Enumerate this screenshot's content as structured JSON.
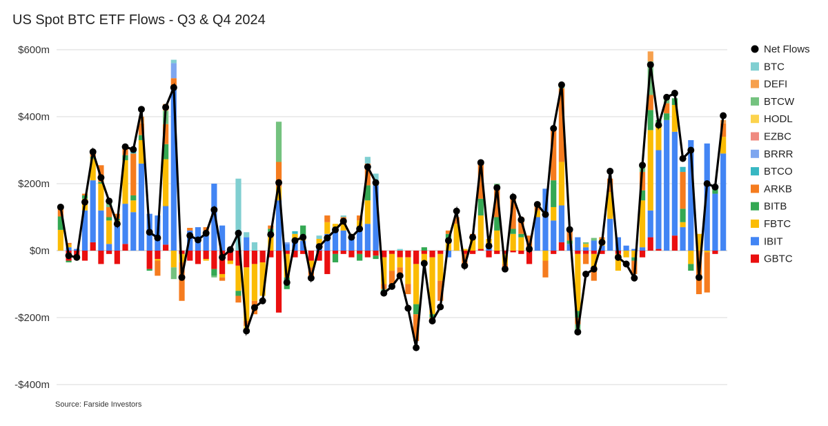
{
  "chart_data": {
    "type": "bar",
    "stacked": true,
    "title": "US Spot BTC ETF Flows - Q3 & Q4 2024",
    "source": "Source: Farside Investors",
    "ylim": [
      -400,
      600
    ],
    "yticks": [
      600,
      400,
      200,
      0,
      -200,
      -400
    ],
    "ytick_labels": [
      "$600m",
      "$400m",
      "$200m",
      "$0m",
      "-$200m",
      "-$400m"
    ],
    "grid": true,
    "legend": "right",
    "legend_order": [
      "Net Flows",
      "BTC",
      "DEFI",
      "BTCW",
      "HODL",
      "EZBC",
      "BRRR",
      "BTCO",
      "ARKB",
      "BITB",
      "FBTC",
      "IBIT",
      "GBTC"
    ],
    "stack_order": [
      "GBTC",
      "IBIT",
      "FBTC",
      "BITB",
      "ARKB",
      "BTCO",
      "BRRR",
      "EZBC",
      "HODL",
      "BTCW",
      "DEFI",
      "BTC"
    ],
    "colors": {
      "BTC": "#80cfd1",
      "DEFI": "#f6a04d",
      "BTCW": "#74c27f",
      "HODL": "#fcd34d",
      "EZBC": "#ef8a80",
      "BRRR": "#7ea6ef",
      "BTCO": "#37b7c2",
      "ARKB": "#f57c1f",
      "BITB": "#34a853",
      "FBTC": "#fbbc04",
      "IBIT": "#4285f4",
      "GBTC": "#ea0f0f",
      "Net Flows": "#000000"
    },
    "days": [
      {
        "IBIT": 0,
        "FBTC": 62,
        "BITB": 40,
        "ARKB": 28
      },
      {
        "GBTC": -30,
        "IBIT": 10,
        "FBTC": 8,
        "BITB": -5,
        "ARKB": 5
      },
      {
        "GBTC": -25,
        "IBIT": 5,
        "ARKB": -3
      },
      {
        "GBTC": -30,
        "IBIT": 120,
        "FBTC": 35,
        "BITB": 10,
        "ARKB": 5
      },
      {
        "GBTC": 25,
        "IBIT": 185,
        "FBTC": 65,
        "ARKB": 20,
        "BITB": 5
      },
      {
        "GBTC": -40,
        "IBIT": 120,
        "FBTC": 80,
        "ARKB": 50,
        "BITB": 5
      },
      {
        "GBTC": -10,
        "IBIT": 20,
        "FBTC": 70,
        "ARKB": 30,
        "BITB": 10,
        "BTCW": 15
      },
      {
        "GBTC": -40,
        "IBIT": 80,
        "FBTC": 10,
        "ARKB": 15,
        "BITB": 5
      },
      {
        "GBTC": 20,
        "IBIT": 120,
        "FBTC": 130,
        "ARKB": 25,
        "BITB": 15
      },
      {
        "IBIT": 115,
        "FBTC": 35,
        "BITB": 15,
        "ARKB": 125,
        "BTCO": 10
      },
      {
        "IBIT": 260,
        "FBTC": 70,
        "BITB": 15,
        "ARKB": 35,
        "DEFI": 20
      },
      {
        "GBTC": -55,
        "IBIT": 110,
        "BITB": -5
      },
      {
        "GBTC": -25,
        "IBIT": 105,
        "ARKB": -45,
        "FBTC": -5
      },
      {
        "GBTC": 18,
        "IBIT": 115,
        "FBTC": 140,
        "BITB": 45,
        "ARKB": 60,
        "BTCW": 40,
        "DEFI": 20
      },
      {
        "IBIT": 480,
        "BRRR": 45,
        "ARKB": 35,
        "BTC": 10,
        "FBTC": -50,
        "BTCW": -35
      },
      {
        "GBTC": -10,
        "FBTC": -25,
        "ARKB": -115
      },
      {
        "GBTC": -30,
        "IBIT": 60,
        "ARKB": 8
      },
      {
        "GBTC": -40,
        "IBIT": 70
      },
      {
        "GBTC": -25,
        "IBIT": 60,
        "ARKB": 10,
        "FBTC": -5
      },
      {
        "GBTC": -55,
        "IBIT": 200,
        "BITB": -20,
        "BTCW": -5
      },
      {
        "GBTC": -70,
        "IBIT": 75,
        "FBTC": -10,
        "ARKB": -10
      },
      {
        "GBTC": -30,
        "FBTC": -10,
        "ARKB": 10
      },
      {
        "GBTC": -45,
        "FBTC": -75,
        "BITB": -15,
        "ARKB": -20,
        "BTC": 215
      },
      {
        "GBTC": -50,
        "IBIT": 40,
        "FBTC": -160,
        "ARKB": -15,
        "HODL": -20,
        "BTC": 15
      },
      {
        "GBTC": -40,
        "FBTC": -110,
        "ARKB": -40,
        "BTC": 25
      },
      {
        "GBTC": -35,
        "FBTC": -100
      },
      {
        "GBTC": -20,
        "FBTC": 50,
        "BITB": 15,
        "ARKB": 10
      },
      {
        "GBTC": -185,
        "IBIT": 150,
        "FBTC": 40,
        "ARKB": 75,
        "BTCW": 120
      },
      {
        "GBTC": -10,
        "IBIT": 20,
        "FBTC": -70,
        "BITB": -35,
        "BRRR": 5
      },
      {
        "GBTC": -20,
        "IBIT": 30,
        "FBTC": 20,
        "BTCO": 8
      },
      {
        "GBTC": -10,
        "IBIT": 30,
        "FBTC": 15,
        "BITB": 30
      },
      {
        "GBTC": -30,
        "FBTC": -20,
        "ARKB": -25
      },
      {
        "GBTC": -30,
        "IBIT": 20,
        "FBTC": 15,
        "BTC": 10
      },
      {
        "GBTC": -70,
        "IBIT": 50,
        "FBTC": 35,
        "ARKB": 20
      },
      {
        "GBTC": -10,
        "IBIT": 70,
        "FBTC": 10,
        "BITB": -25
      },
      {
        "GBTC": -10,
        "IBIT": 60,
        "FBTC": 30,
        "ARKB": 10,
        "BTC": 5
      },
      {
        "GBTC": -20,
        "IBIT": 40,
        "FBTC": 10
      },
      {
        "GBTC": -10,
        "IBIT": 60,
        "FBTC": 30,
        "BITB": -20,
        "ARKB": 15
      },
      {
        "GBTC": -20,
        "IBIT": 80,
        "FBTC": 70,
        "BITB": 45,
        "ARKB": 65,
        "BTC": 20
      },
      {
        "GBTC": -15,
        "IBIT": 195,
        "FBTC": 10,
        "BITB": -10,
        "BTC": 25
      },
      {
        "GBTC": -20,
        "FBTC": -80,
        "ARKB": -15,
        "BTCW": -10
      },
      {
        "GBTC": -10,
        "FBTC": -50,
        "ARKB": -40
      },
      {
        "GBTC": -20,
        "FBTC": -30,
        "ARKB": -20,
        "BTC": 5
      },
      {
        "GBTC": -20,
        "FBTC": -80,
        "ARKB": -30
      },
      {
        "GBTC": -40,
        "FBTC": -120,
        "BITB": -30,
        "ARKB": -80
      },
      {
        "GBTC": -10,
        "FBTC": -30,
        "BITB": 10
      },
      {
        "GBTC": -20,
        "FBTC": -170,
        "BITB": -10,
        "ARKB": -15
      },
      {
        "GBTC": -10,
        "FBTC": -80,
        "ARKB": -60
      },
      {
        "FBTC": 30,
        "ARKB": 10,
        "BITB": 20,
        "IBIT": -20
      },
      {
        "IBIT": 0,
        "FBTC": 80,
        "ARKB": 20
      },
      {
        "GBTC": -10,
        "FBTC": 5,
        "ARKB": -40
      },
      {
        "GBTC": -10,
        "FBTC": 35,
        "ARKB": 15
      },
      {
        "GBTC": 5,
        "FBTC": 100,
        "BITB": 50,
        "ARKB": 110
      },
      {
        "GBTC": -20,
        "IBIT": 10,
        "FBTC": 25
      },
      {
        "GBTC": -10,
        "FBTC": 60,
        "BITB": 40,
        "ARKB": 90,
        "BTCW": 10
      },
      {
        "GBTC": -10,
        "FBTC": -30,
        "ARKB": -10
      },
      {
        "GBTC": -5,
        "FBTC": 50,
        "ARKB": 100,
        "BITB": 15
      },
      {
        "GBTC": -10,
        "FBTC": 40,
        "BITB": 10,
        "ARKB": 50
      },
      {
        "GBTC": -40,
        "IBIT": 5,
        "ARKB": 40
      },
      {
        "IBIT": 100,
        "FBTC": 20,
        "ARKB": 15
      },
      {
        "IBIT": 185,
        "FBTC": -30,
        "ARKB": -50
      },
      {
        "GBTC": -10,
        "IBIT": 90,
        "FBTC": 40,
        "BITB": 80,
        "ARKB": 150
      },
      {
        "GBTC": 25,
        "IBIT": 110,
        "FBTC": 130,
        "ARKB": 220,
        "BTCW": 10
      },
      {
        "IBIT": 20,
        "ARKB": 30,
        "BITB": 10
      },
      {
        "GBTC": -10,
        "IBIT": 40,
        "FBTC": -170,
        "BITB": -20,
        "ARKB": -20,
        "BTCW": -30
      },
      {
        "GBTC": -10,
        "FBTC": 10,
        "ARKB": -30,
        "IBIT": 10,
        "BTCW": 5
      },
      {
        "GBTC": -10,
        "IBIT": 30,
        "FBTC": -50,
        "ARKB": -30,
        "BTCW": 8
      },
      {
        "GBTC": -10,
        "FBTC": 20,
        "IBIT": 15,
        "ARKB": 5
      },
      {
        "IBIT": 95,
        "FBTC": 80,
        "ARKB": 40
      },
      {
        "GBTC": -10,
        "IBIT": 40,
        "FBTC": -50
      },
      {
        "IBIT": 15,
        "FBTC": -20
      },
      {
        "IBIT": 5,
        "FBTC": -20,
        "ARKB": -40,
        "BITB": -10
      },
      {
        "GBTC": -20,
        "IBIT": 10,
        "FBTC": 140,
        "ARKB": 55,
        "BITB": 30,
        "BTCW": 20
      },
      {
        "GBTC": 40,
        "IBIT": 80,
        "FBTC": 240,
        "ARKB": 45,
        "BITB": 60,
        "BTCW": 100,
        "DEFI": 30
      },
      {
        "GBTC": 5,
        "IBIT": 295,
        "FBTC": 80,
        "BITB": 10
      },
      {
        "IBIT": 390,
        "ARKB": 30,
        "BITB": 20,
        "BTCW": 20
      },
      {
        "GBTC": 45,
        "IBIT": 310,
        "FBTC": 80,
        "BITB": 20
      },
      {
        "IBIT": 70,
        "ARKB": 110,
        "BITB": 40,
        "FBTC": 15,
        "BTCO": 15
      },
      {
        "IBIT": 330,
        "FBTC": -40,
        "BITB": -20
      },
      {
        "IBIT": 0,
        "FBTC": 50,
        "ARKB": -130
      },
      {
        "IBIT": 320,
        "FBTC": -5,
        "ARKB": -120
      },
      {
        "GBTC": -10,
        "IBIT": 170,
        "BITB": 20
      },
      {
        "IBIT": 290,
        "FBTC": 50,
        "ARKB": 40,
        "DEFI": 10
      }
    ],
    "net_flows": [
      130,
      -15,
      -20,
      145,
      295,
      218,
      148,
      80,
      310,
      302,
      422,
      55,
      38,
      428,
      487,
      -80,
      45,
      32,
      52,
      122,
      -20,
      3,
      52,
      -240,
      -170,
      -150,
      48,
      203,
      -95,
      30,
      40,
      -82,
      12,
      38,
      62,
      88,
      40,
      65,
      250,
      203,
      -127,
      -107,
      -75,
      -172,
      -290,
      -38,
      -210,
      -168,
      30,
      118,
      -45,
      40,
      263,
      14,
      188,
      -55,
      160,
      92,
      5,
      138,
      108,
      365,
      495,
      63,
      -243,
      -70,
      -55,
      25,
      237,
      -20,
      -40,
      -82,
      255,
      555,
      375,
      458,
      470,
      275,
      300,
      -80,
      200,
      190,
      403
    ]
  }
}
